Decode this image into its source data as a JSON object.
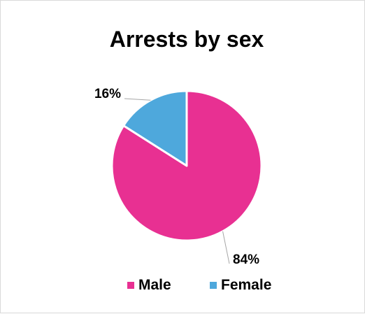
{
  "chart_data": {
    "type": "pie",
    "title": "Arrests by sex",
    "categories": [
      "Male",
      "Female"
    ],
    "values": [
      84,
      16
    ],
    "data_labels": [
      "84%",
      "16%"
    ],
    "colors": [
      "#e83092",
      "#4ea8dc"
    ],
    "legend": {
      "placement": "bottom",
      "entries": [
        "Male",
        "Female"
      ]
    }
  }
}
